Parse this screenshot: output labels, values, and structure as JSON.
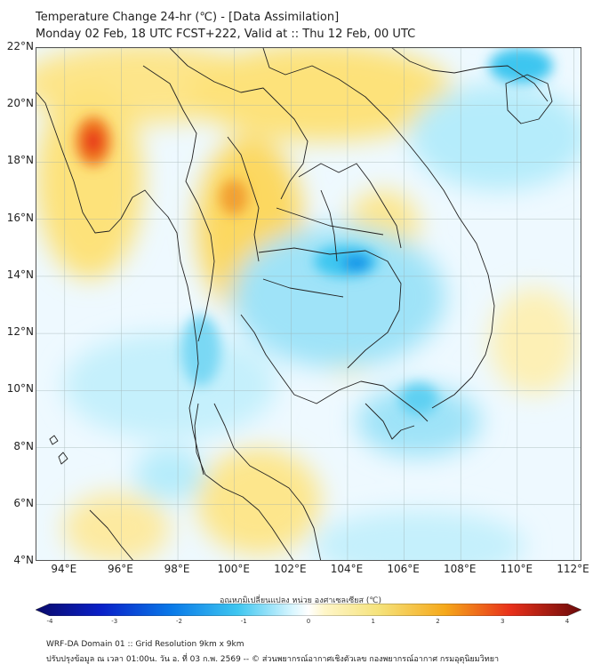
{
  "title_line1": "Temperature Change 24-hr (℃) - [Data Assimilation]",
  "title_line2": "Monday 02 Feb, 18 UTC FCST+222, Valid at :: Thu 12 Feb, 00 UTC",
  "map": {
    "lat_labels": [
      "22°N",
      "20°N",
      "18°N",
      "16°N",
      "14°N",
      "12°N",
      "10°N",
      "8°N",
      "6°N",
      "4°N"
    ],
    "lon_labels": [
      "94°E",
      "96°E",
      "98°E",
      "100°E",
      "102°E",
      "104°E",
      "106°E",
      "108°E",
      "110°E",
      "112°E"
    ],
    "lat_range": [
      4,
      22
    ],
    "lon_range": [
      93,
      112.3
    ],
    "background_color": "#ffffff",
    "warm_color": "#f5c400",
    "hot_color": "#e8301a",
    "cool_color": "#3ec6f0",
    "cold_color": "#0a90e8",
    "grid": true
  },
  "colorbar": {
    "title": "อุณหภูมิเปลี่ยนแปลง หน่วย องศาเซลเซียส (℃)",
    "ticks": [
      "-4",
      "-3",
      "-2",
      "-1",
      "0",
      "1",
      "2",
      "3",
      "4"
    ],
    "range": [
      -4,
      4
    ]
  },
  "footer_line1": "WRF-DA Domain 01 :: Grid Resolution 9km x 9km",
  "footer_line2": "ปรับปรุงข้อมูล ณ เวลา 01:00น. วัน อ. ที่ 03 ก.พ. 2569 -- © ส่วนพยากรณ์อากาศเชิงตัวเลข กองพยากรณ์อากาศ กรมอุตุนิยมวิทยา"
}
